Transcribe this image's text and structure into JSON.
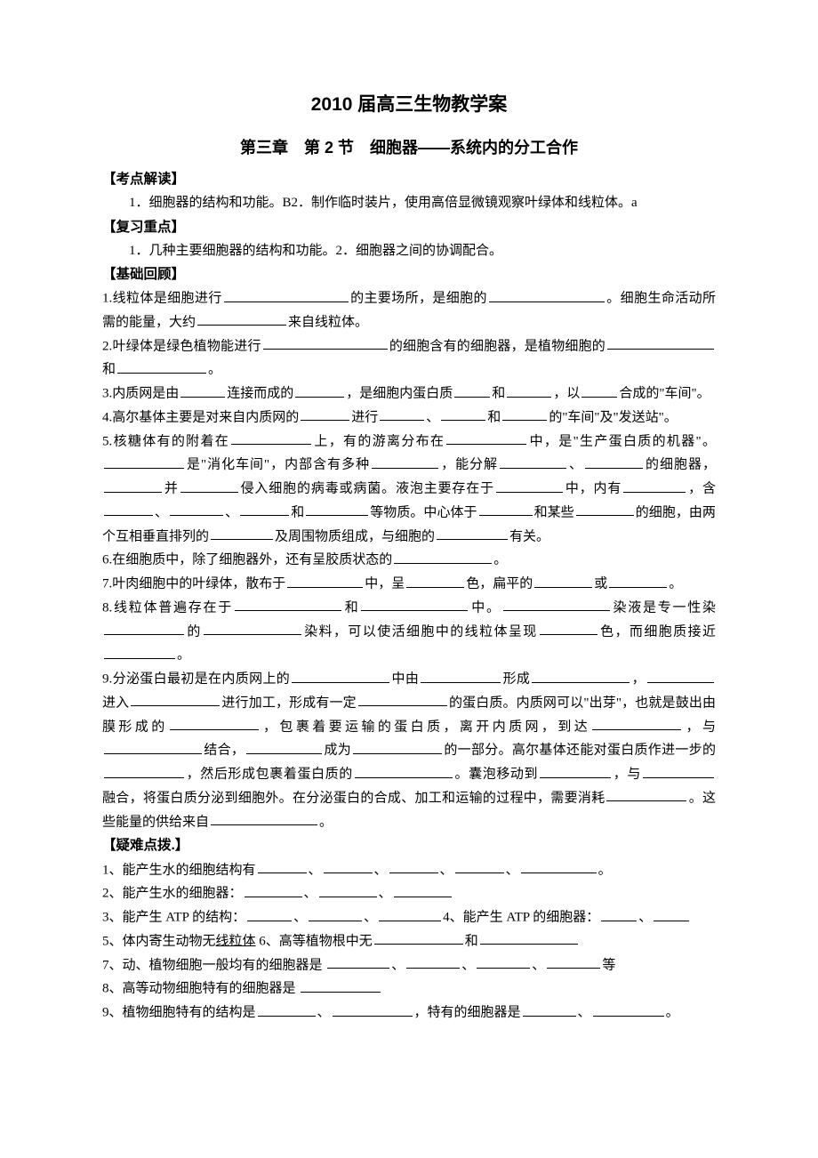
{
  "title": "2010 届高三生物教学案",
  "subtitle": "第三章　第 2 节　细胞器——系统内的分工合作",
  "sections": {
    "s1_head": "【考点解读】",
    "s1_body": "1．细胞器的结构和功能。B2．制作临时装片，使用高倍显微镜观察叶绿体和线粒体。a",
    "s2_head": "【复习重点】",
    "s2_body": "1．几种主要细胞器的结构和功能。2．细胞器之间的协调配合。",
    "s3_head": "【基础回顾】",
    "q1_a": "1.线粒体是细胞进行",
    "q1_b": "的主要场所，是细胞的",
    "q1_c": "。细胞生命活动所需的能量，大约",
    "q1_d": "来自线粒体。",
    "q2_a": "2.叶绿体是绿色植物能进行",
    "q2_b": "的细胞含有的细胞器，是植物细胞的",
    "q2_c": "和",
    "q2_d": "。",
    "q3_a": "3.内质网是由",
    "q3_b": "连接而成的",
    "q3_c": "，是细胞内蛋白质",
    "q3_d": "和",
    "q3_e": "，以",
    "q3_f": "合成的\"车间\"。",
    "q4_a": "4.高尔基体主要是对来自内质网的",
    "q4_b": "进行",
    "q4_c": "、",
    "q4_d": "和",
    "q4_e": "的\"车间\"及\"发送站\"。",
    "q5_a": "5.核糖体有的附着在",
    "q5_b": "上，有的游离分布在",
    "q5_c": "中，是\"生产蛋白质的机器\"。",
    "q5_d": "是\"消化车间\"，内部含有多种",
    "q5_e": "，能分解",
    "q5_f": "、",
    "q5_g": "的细胞器，",
    "q5_h": "并",
    "q5_i": "侵入细胞的病毒或病菌。液泡主要存在于",
    "q5_j": "中，内有",
    "q5_k": "，含",
    "q5_l": "、",
    "q5_m": "、",
    "q5_n": "和",
    "q5_o": "等物质。中心体于",
    "q5_p": "和某些",
    "q5_q": "的细胞，由两个互相垂直排列的",
    "q5_r": "及周围物质组成，与细胞的",
    "q5_s": "有关。",
    "q6_a": "6.在细胞质中，除了细胞器外，还有呈胶质状态的",
    "q6_b": "。",
    "q7_a": "7.叶肉细胞中的叶绿体，散布于",
    "q7_b": "中，呈",
    "q7_c": "色，扁平的",
    "q7_d": "或",
    "q7_e": "。",
    "q8_a": "8.线粒体普遍存在于",
    "q8_b": "和",
    "q8_c": "中。",
    "q8_d": "染液是专一性染",
    "q8_e": "的",
    "q8_f": "染料，可以使活细胞中的线粒体呈现",
    "q8_g": "色，而细胞质接近",
    "q8_h": "。",
    "q9_a": "9.分泌蛋白最初是在内质网上的",
    "q9_b": "中由",
    "q9_c": "形成",
    "q9_d": "，",
    "q9_e": "进入",
    "q9_f": "进行加工，形成有一定",
    "q9_g": "的蛋白质。内质网可以\"出芽\"，也就是鼓出由膜形成的",
    "q9_h": "，包裹着要运输的蛋白质，离开内质网，到达",
    "q9_i": "，与",
    "q9_j": "结合，",
    "q9_k": "成为",
    "q9_l": "的一部分。高尔基体还能对蛋白质作进一步的",
    "q9_m": "，然后形成包裹着蛋白质的",
    "q9_n": "。囊泡移动到",
    "q9_o": "，与",
    "q9_p": "融合，将蛋白质分泌到细胞外。在分泌蛋白的合成、加工和运输的过程中，需要消耗",
    "q9_q": "。这些能量的供给来自",
    "q9_r": "。",
    "s4_head": "【疑难点拨.】",
    "d1_a": "1、能产生水的细胞结构有",
    "d1_b": "、",
    "d1_c": "。",
    "d2_a": "2、能产生水的细胞器：",
    "d2_b": "、",
    "d3_a": "3、能产生 ATP 的结构：",
    "d3_b": "、",
    "d3_c": "4、能产生 ATP 的细胞器：",
    "d3_d": "、",
    "d5_a": "5、体内寄生动物无",
    "d5_b": "线粒体",
    "d5_c": " 6、高等植物根中无",
    "d5_d": "和",
    "d7_a": "7、动、植物细胞一般均有的细胞器是 ",
    "d7_b": "、",
    "d7_c": "等",
    "d8_a": "8、高等动物细胞特有的细胞器是 ",
    "d9_a": "9、植物细胞特有的结构是",
    "d9_b": "、",
    "d9_c": "，特有的细胞器是",
    "d9_d": "、",
    "d9_e": "。"
  },
  "blanks": {
    "w40": 40,
    "w50": 50,
    "w55": 55,
    "w60": 60,
    "w65": 65,
    "w70": 70,
    "w75": 75,
    "w80": 80,
    "w85": 85,
    "w90": 90,
    "w100": 100,
    "w110": 110,
    "w120": 120,
    "w130": 130,
    "w140": 140
  }
}
